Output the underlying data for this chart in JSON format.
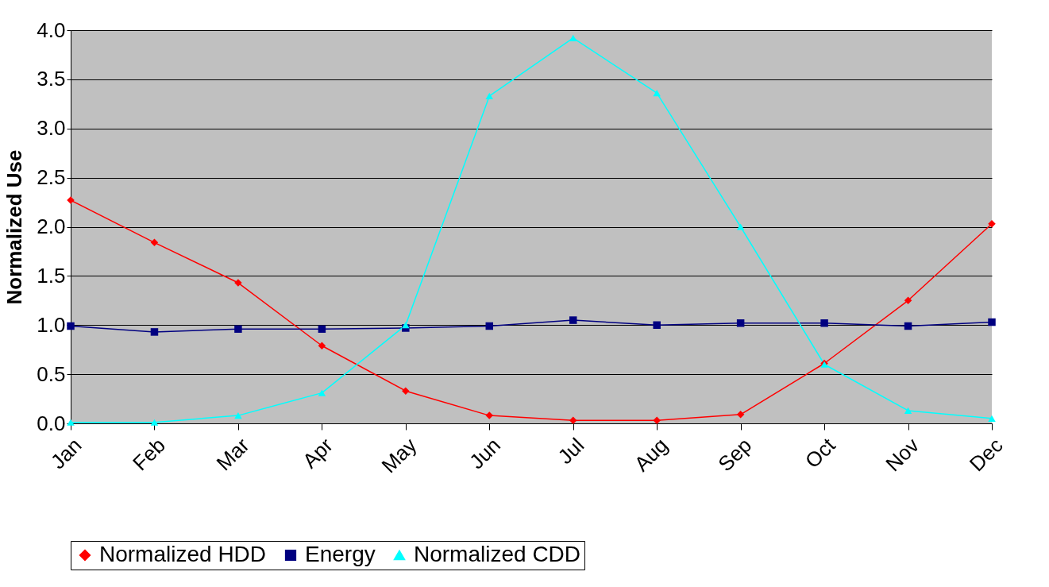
{
  "chart_data": {
    "type": "line",
    "ylabel": "Normalized Use",
    "categories": [
      "Jan",
      "Feb",
      "Mar",
      "Apr",
      "May",
      "Jun",
      "Jul",
      "Aug",
      "Sep",
      "Oct",
      "Nov",
      "Dec"
    ],
    "series": [
      {
        "name": "Normalized HDD",
        "color": "#ff0000",
        "marker": "diamond",
        "values": [
          2.27,
          1.84,
          1.43,
          0.79,
          0.33,
          0.08,
          0.03,
          0.03,
          0.09,
          0.61,
          1.25,
          2.03
        ]
      },
      {
        "name": "Energy",
        "color": "#000080",
        "marker": "square",
        "values": [
          0.99,
          0.93,
          0.96,
          0.96,
          0.97,
          0.99,
          1.05,
          1.0,
          1.02,
          1.02,
          0.99,
          1.03
        ]
      },
      {
        "name": "Normalized CDD",
        "color": "#00ffff",
        "marker": "triangle",
        "values": [
          0.01,
          0.01,
          0.08,
          0.31,
          1.0,
          3.33,
          3.92,
          3.36,
          2.0,
          0.6,
          0.13,
          0.05
        ]
      }
    ],
    "ylim": [
      0,
      4
    ],
    "yticks": [
      {
        "value": 0,
        "label": "0.0"
      },
      0.5,
      {
        "value": 1,
        "label": "1.0"
      },
      1.5,
      {
        "value": 2,
        "label": "2.0"
      },
      2.5,
      {
        "value": 3,
        "label": "3.0"
      },
      3.5,
      {
        "value": 4,
        "label": "4.0"
      }
    ],
    "grid": "y",
    "legend": "bottom"
  }
}
